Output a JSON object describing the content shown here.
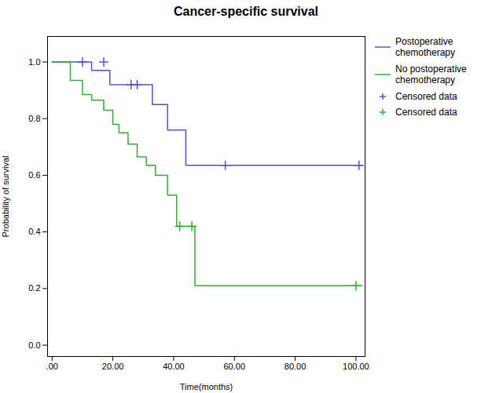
{
  "chart_data": {
    "type": "step",
    "title": "Cancer-specific survival",
    "x_label": "Time(months)",
    "y_label": "Probability of survival",
    "xlim": [
      -1.5,
      103
    ],
    "ylim": [
      -0.04,
      1.09
    ],
    "xticks": [
      {
        "value": 0,
        "label": ".00"
      },
      {
        "value": 20,
        "label": "20.00"
      },
      {
        "value": 40,
        "label": "40.00"
      },
      {
        "value": 60,
        "label": "60.00"
      },
      {
        "value": 80,
        "label": "80.00"
      },
      {
        "value": 100,
        "label": "100.00"
      }
    ],
    "yticks": [
      {
        "value": 0,
        "label": "0.0"
      },
      0.2,
      0.4,
      0.6,
      0.8,
      {
        "value": 1,
        "label": "1.0"
      }
    ],
    "grid": false,
    "legend": "right",
    "series": [
      {
        "name": "Postoperative\nchemotherapy",
        "type": "step",
        "color": "#5555bb",
        "x": [
          0,
          13,
          13,
          19,
          19,
          25,
          25,
          29,
          29,
          33,
          33,
          38,
          38,
          44,
          44,
          48,
          48,
          102
        ],
        "values": [
          1.0,
          1.0,
          0.97,
          0.97,
          0.92,
          0.92,
          0.92,
          0.92,
          0.92,
          0.92,
          0.85,
          0.85,
          0.76,
          0.76,
          0.635,
          0.635,
          0.635,
          0.635
        ]
      },
      {
        "name": "No postoperative\nchemotherapy",
        "type": "step",
        "color": "#33aa33",
        "x": [
          0,
          6,
          6,
          10,
          10,
          13,
          13,
          17,
          17,
          20,
          20,
          22,
          22,
          25,
          25,
          28,
          28,
          31,
          31,
          34,
          34,
          38,
          38,
          41,
          41,
          44,
          44,
          47,
          47,
          50,
          50,
          102
        ],
        "values": [
          1.0,
          1.0,
          0.935,
          0.935,
          0.885,
          0.885,
          0.865,
          0.865,
          0.83,
          0.83,
          0.78,
          0.78,
          0.75,
          0.75,
          0.71,
          0.71,
          0.665,
          0.665,
          0.635,
          0.635,
          0.6,
          0.6,
          0.53,
          0.53,
          0.42,
          0.42,
          0.42,
          0.42,
          0.21,
          0.21,
          0.21,
          0.21
        ]
      },
      {
        "name": "Censored data",
        "type": "scatter",
        "marker": "plus",
        "color": "#5555bb",
        "x": [
          10,
          17,
          26,
          28,
          57,
          101
        ],
        "values": [
          1.0,
          1.0,
          0.92,
          0.92,
          0.635,
          0.635
        ]
      },
      {
        "name": "Censored data",
        "type": "scatter",
        "marker": "plus",
        "color": "#33aa33",
        "x": [
          42,
          46,
          100
        ],
        "values": [
          0.42,
          0.42,
          0.21
        ]
      }
    ]
  }
}
